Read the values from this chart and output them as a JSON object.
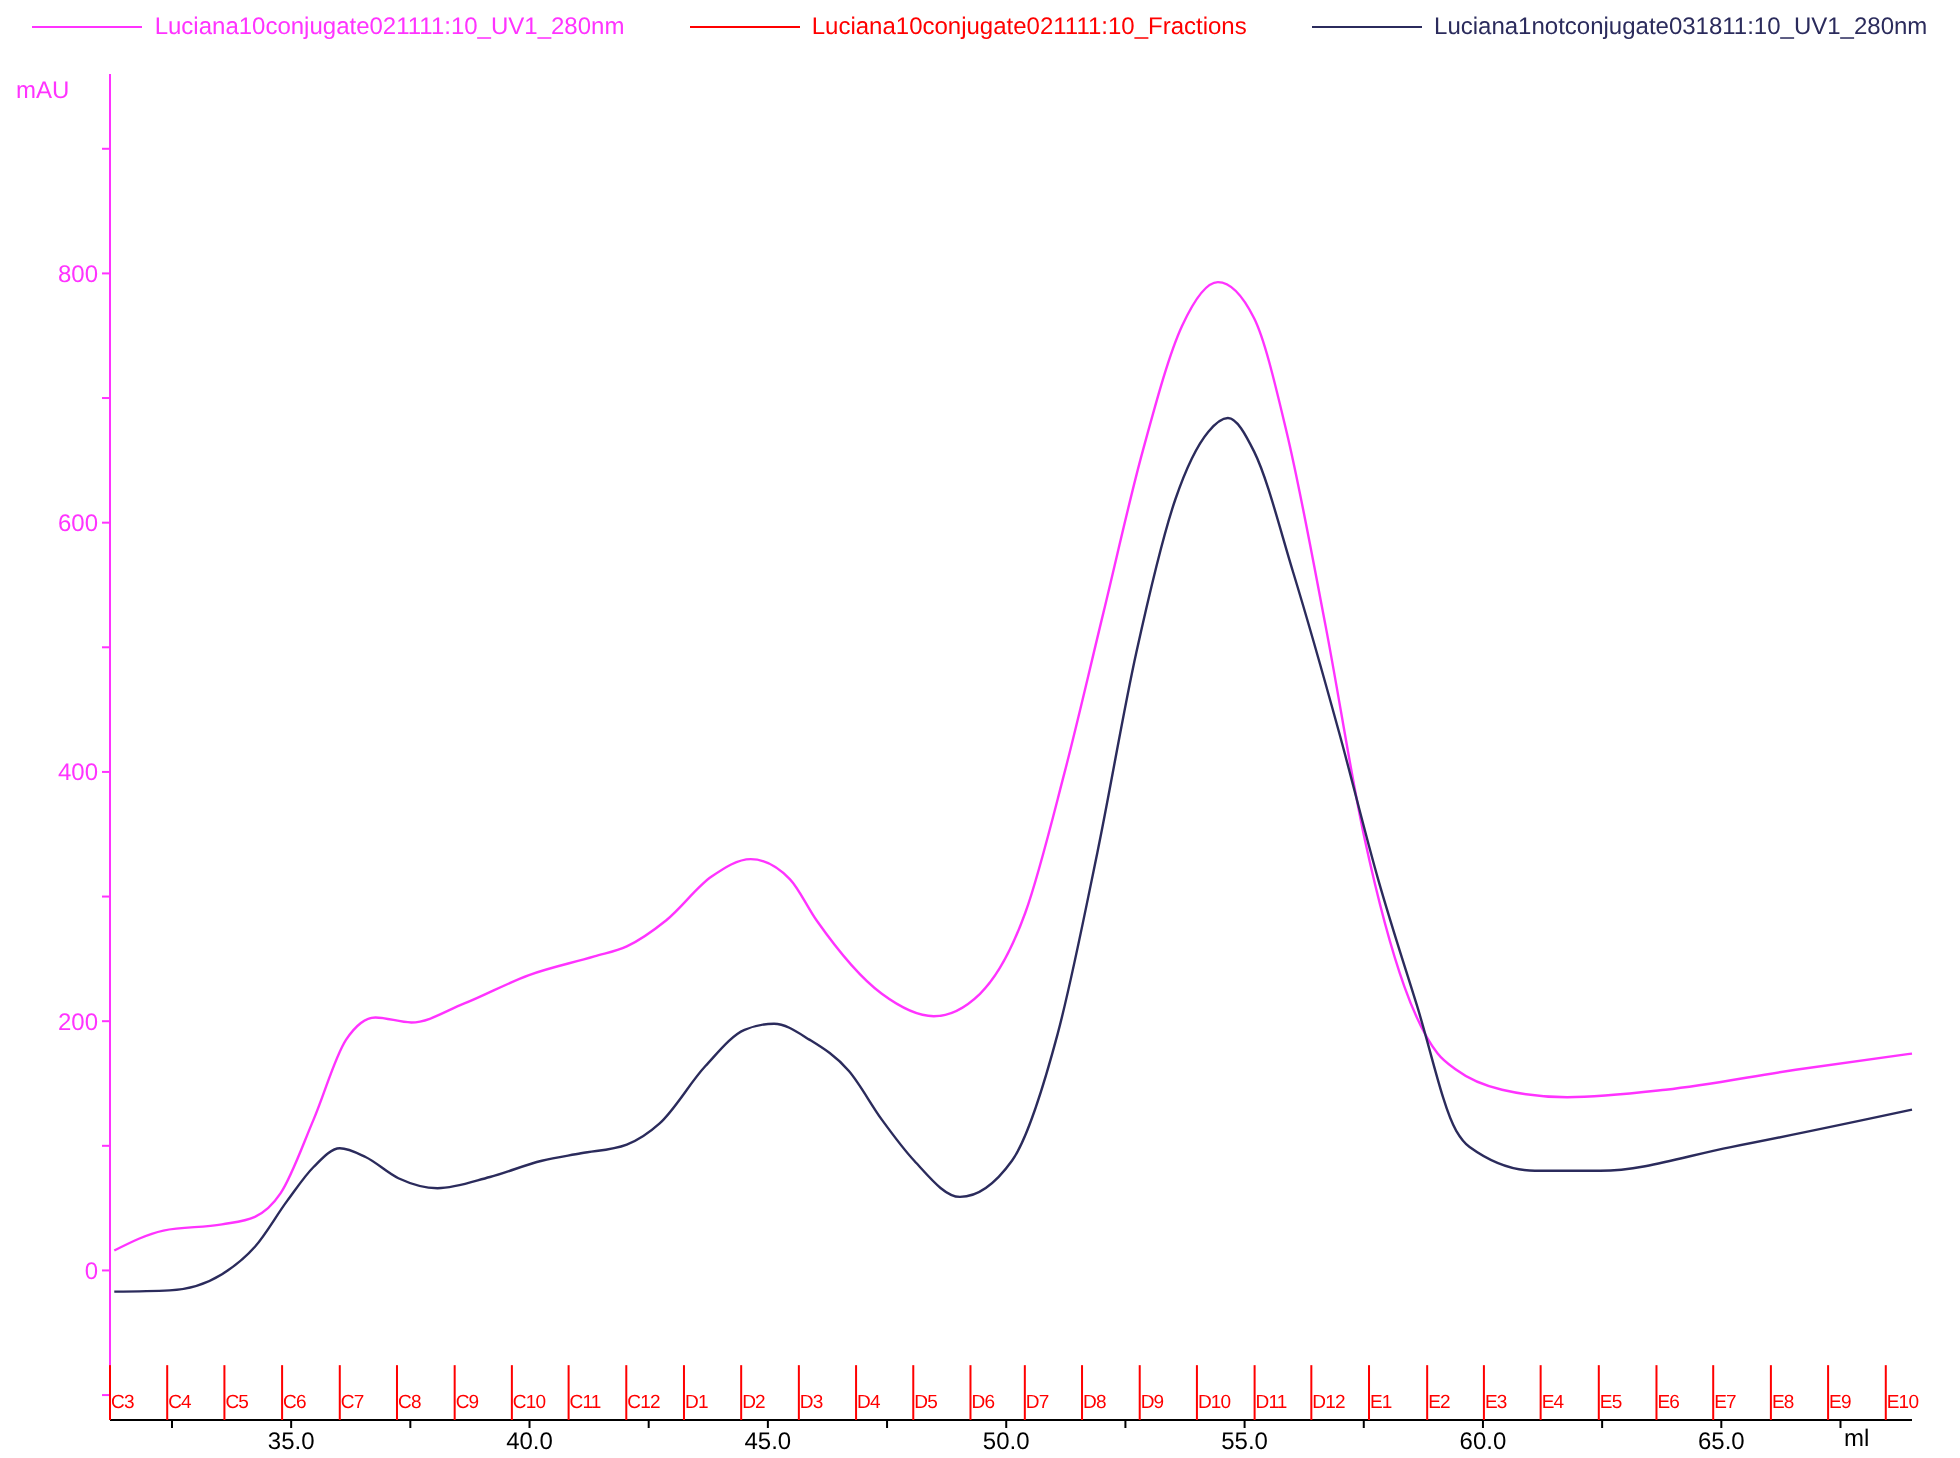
{
  "chart_data": {
    "type": "line",
    "xlabel": "ml",
    "ylabel": "mAU",
    "legend": "top",
    "grid": false,
    "marker": "none",
    "line_style": "solid",
    "xlim": [
      31.2,
      69.0
    ],
    "ylim": [
      -120,
      960
    ],
    "xticks": [
      {
        "value": 32.5,
        "label": null
      },
      {
        "value": 35,
        "label": "35.0"
      },
      {
        "value": 37.5,
        "label": null
      },
      {
        "value": 40,
        "label": "40.0"
      },
      {
        "value": 42.5,
        "label": null
      },
      {
        "value": 45,
        "label": "45.0"
      },
      {
        "value": 47.5,
        "label": null
      },
      {
        "value": 50,
        "label": "50.0"
      },
      {
        "value": 52.5,
        "label": null
      },
      {
        "value": 55,
        "label": "55.0"
      },
      {
        "value": 57.5,
        "label": null
      },
      {
        "value": 60,
        "label": "60.0"
      },
      {
        "value": 62.5,
        "label": null
      },
      {
        "value": 65,
        "label": "65.0"
      },
      {
        "value": 67.5,
        "label": null
      }
    ],
    "yticks": [
      {
        "value": -100,
        "label": null
      },
      0,
      {
        "value": 100,
        "label": null
      },
      200,
      {
        "value": 300,
        "label": null
      },
      400,
      {
        "value": 500,
        "label": null
      },
      600,
      {
        "value": 700,
        "label": null
      },
      800,
      {
        "value": 900,
        "label": null
      }
    ],
    "series": [
      {
        "name": "Luciana10conjugate021111:10_UV1_280nm",
        "color": "#ff33ff",
        "x": [
          31.29,
          32.32,
          33.55,
          34.24,
          34.78,
          35.47,
          36.15,
          36.77,
          37.52,
          38.62,
          39.99,
          41.36,
          42.04,
          42.87,
          43.82,
          44.64,
          45.46,
          46.02,
          47.39,
          48.48,
          49.45,
          50.4,
          51.22,
          52.04,
          52.86,
          53.69,
          54.44,
          55.2,
          55.88,
          56.7,
          57.52,
          58.35,
          59.05,
          59.44,
          60.4,
          61.77,
          63.83,
          66.56,
          69.0
        ],
        "values": [
          16,
          32,
          37,
          43,
          62,
          121,
          185,
          203,
          199,
          214,
          237,
          252,
          260,
          281,
          316,
          330,
          314,
          281,
          222,
          204,
          222,
          287,
          399,
          528,
          657,
          758,
          793,
          764,
          673,
          517,
          346,
          228,
          174,
          161,
          145,
          139,
          145,
          161,
          174
        ]
      },
      {
        "name": "Luciana10conjugate021111:10_Fractions",
        "color": "#ff0000",
        "type": "bar",
        "x": [
          31.2,
          32.4,
          33.6,
          34.81,
          36.02,
          37.22,
          38.43,
          39.63,
          40.82,
          42.03,
          43.24,
          44.44,
          45.65,
          46.85,
          48.05,
          49.25,
          50.39,
          51.59,
          52.8,
          54.0,
          55.21,
          56.4,
          57.61,
          58.83,
          60.02,
          61.21,
          62.43,
          63.64,
          64.83,
          66.04,
          67.24,
          68.45
        ],
        "base": [
          -120,
          -120,
          -120,
          -120,
          -120,
          -120,
          -120,
          -120,
          -120,
          -120,
          -120,
          -120,
          -120,
          -120,
          -120,
          -120,
          -120,
          -120,
          -120,
          -120,
          -120,
          -120,
          -120,
          -120,
          -120,
          -120,
          -120,
          -120,
          -120,
          -120,
          -120,
          -120
        ],
        "values": [
          44,
          44,
          44,
          44,
          44,
          44,
          44,
          44,
          44,
          44,
          44,
          44,
          44,
          44,
          44,
          44,
          44,
          44,
          44,
          44,
          44,
          44,
          44,
          44,
          44,
          44,
          44,
          44,
          44,
          44,
          44,
          44
        ],
        "value_labels": [
          "C3",
          "C4",
          "C5",
          "C6",
          "C7",
          "C8",
          "C9",
          "C10",
          "C11",
          "C12",
          "D1",
          "D2",
          "D3",
          "D4",
          "D5",
          "D6",
          "D7",
          "D8",
          "D9",
          "D10",
          "D11",
          "D12",
          "E1",
          "E2",
          "E3",
          "E4",
          "E5",
          "E6",
          "E7",
          "E8",
          "E9",
          "E10"
        ]
      },
      {
        "name": "Luciana1notconjugate031811:10_UV1_280nm",
        "color": "#2b2b5c",
        "x": [
          31.29,
          32.45,
          33.55,
          34.24,
          34.92,
          35.47,
          36.02,
          36.56,
          37.25,
          38.07,
          39.17,
          40.26,
          41.08,
          42.04,
          42.73,
          43.69,
          44.51,
          45.13,
          45.88,
          46.7,
          47.39,
          48.07,
          49.03,
          50.12,
          51.08,
          51.91,
          52.73,
          53.55,
          54.24,
          54.65,
          55.2,
          56.02,
          56.98,
          57.8,
          58.62,
          59.44,
          59.72,
          61.09,
          62.46,
          65.2,
          69.0
        ],
        "values": [
          -17,
          -16,
          -3,
          19,
          56,
          83,
          98,
          91,
          74,
          66,
          75,
          88,
          94,
          101,
          118,
          164,
          193,
          198,
          185,
          160,
          121,
          88,
          59,
          88,
          190,
          335,
          496,
          619,
          673,
          684,
          657,
          560,
          432,
          314,
          212,
          112,
          99,
          80,
          80,
          99,
          129
        ]
      }
    ]
  }
}
